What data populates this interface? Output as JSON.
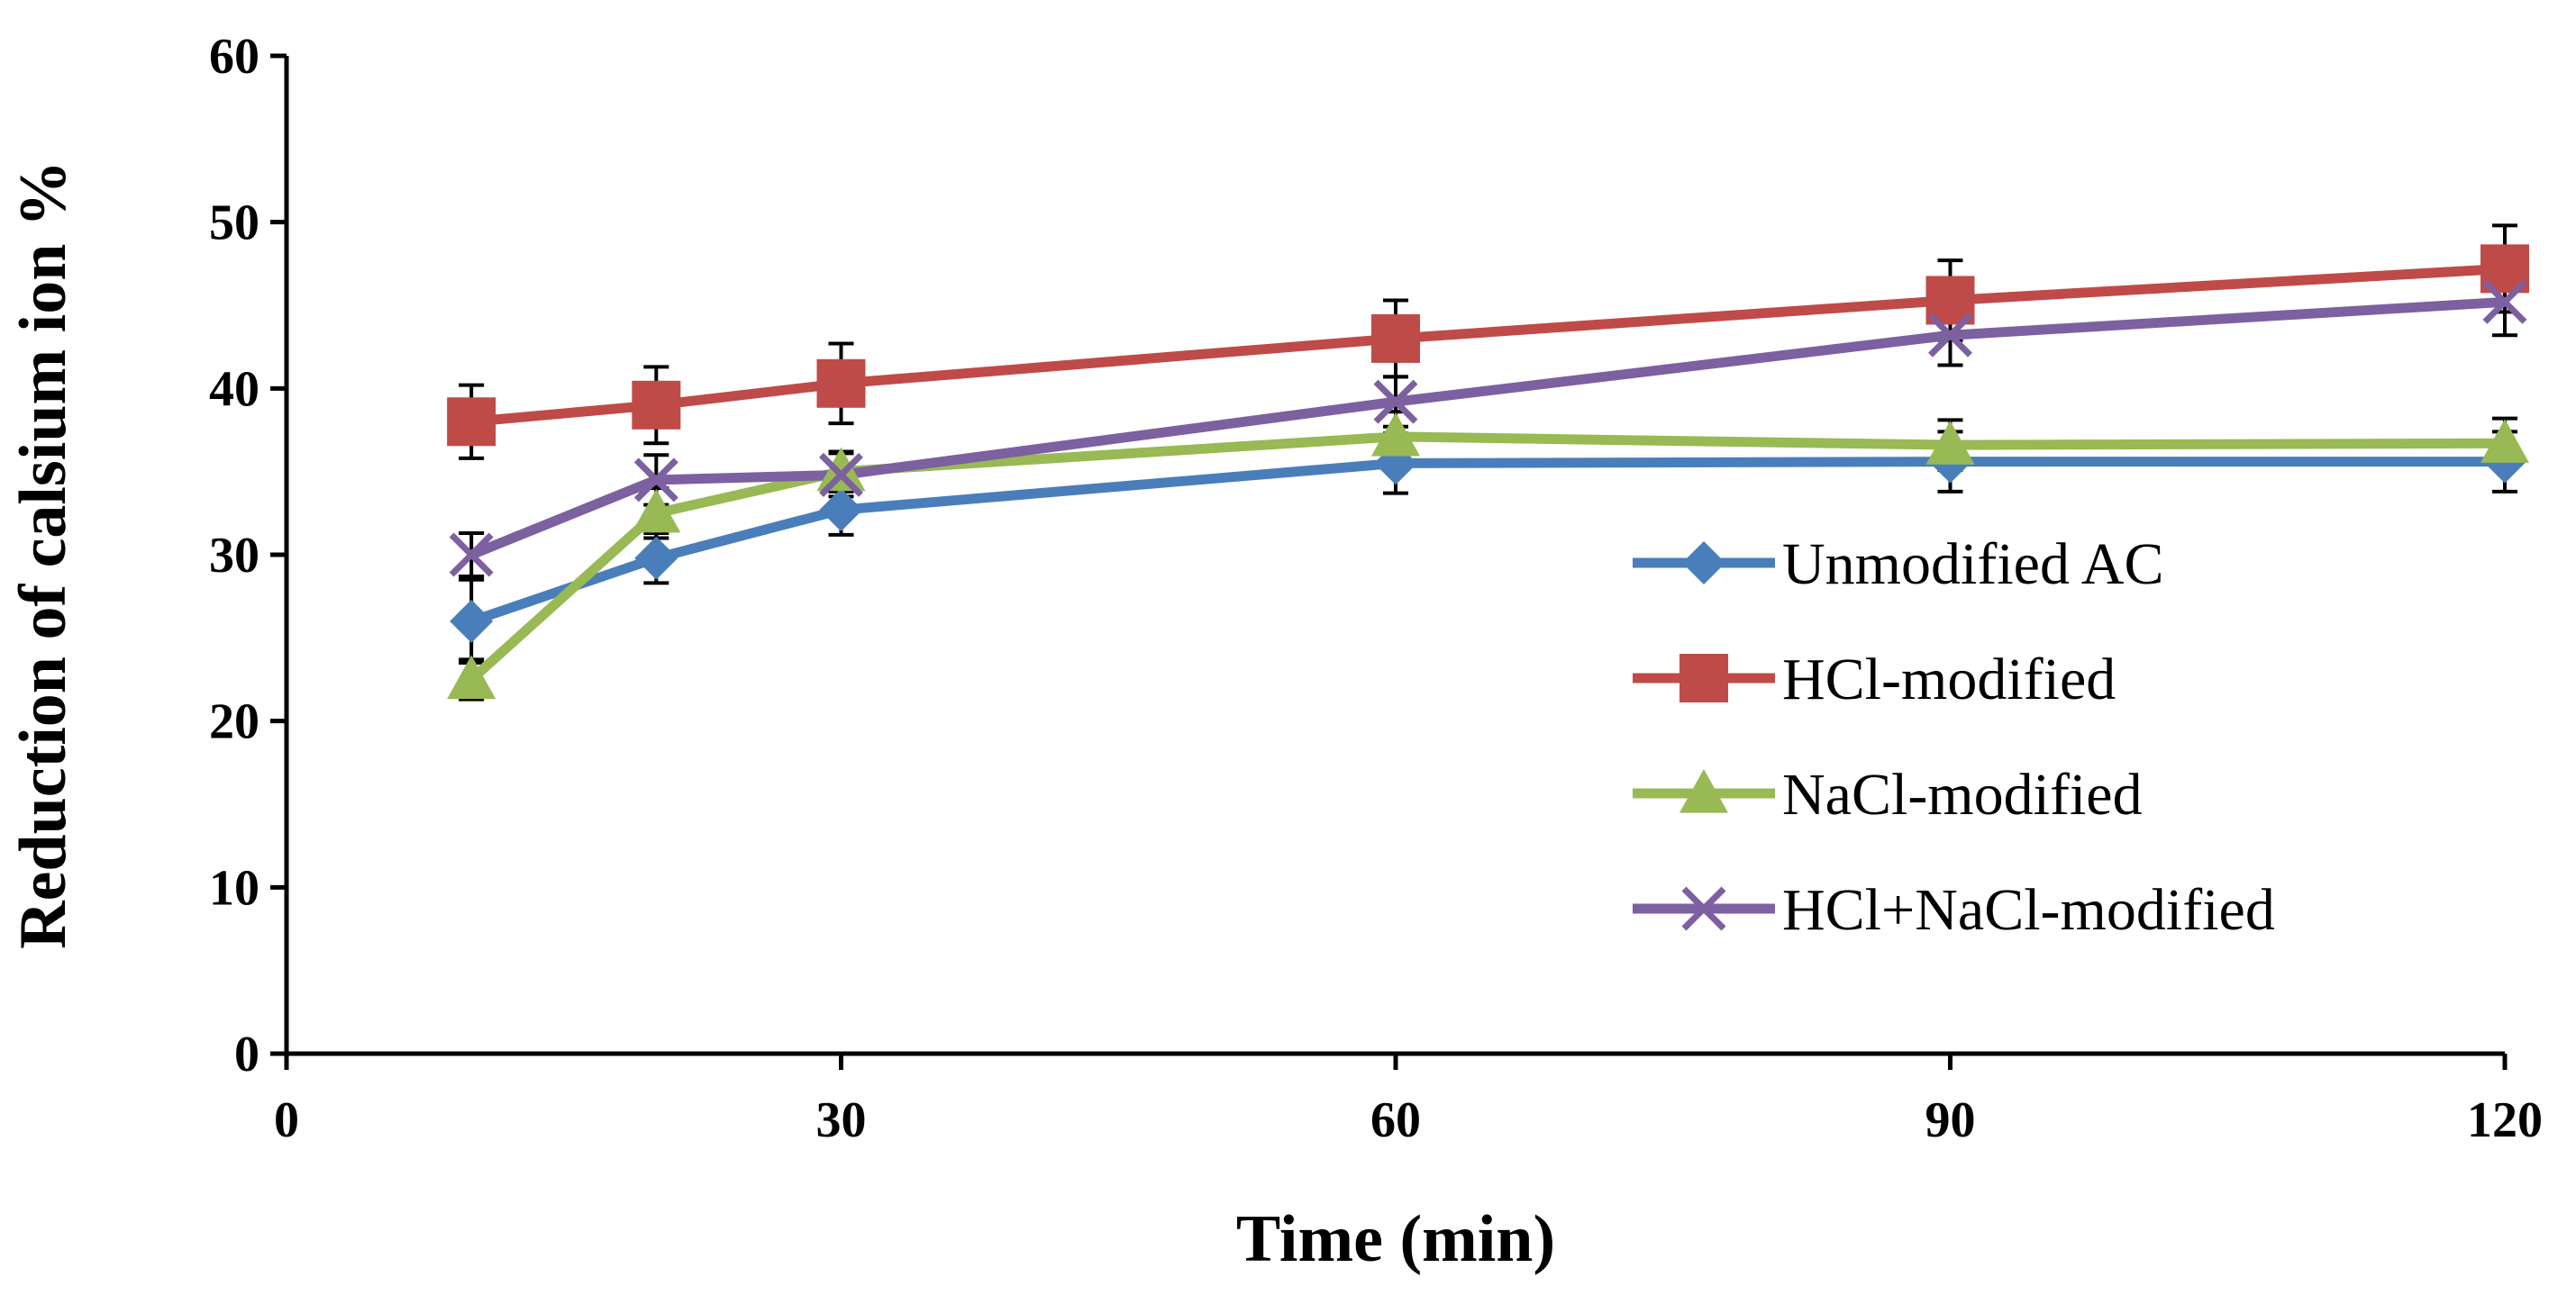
{
  "chart_data": {
    "type": "line",
    "title": "",
    "xlabel": "Time (min)",
    "ylabel": "Reduction of calsium ion %",
    "xlim": [
      0,
      120
    ],
    "ylim": [
      0,
      60
    ],
    "xticks": [
      0,
      30,
      60,
      90,
      120
    ],
    "yticks": [
      0,
      10,
      20,
      30,
      40,
      50,
      60
    ],
    "x": [
      10,
      20,
      30,
      60,
      90,
      120
    ],
    "grid": false,
    "legend_position": "right",
    "series": [
      {
        "name": "Unmodified AC",
        "marker": "diamond",
        "color": "#4a7ebb",
        "values": [
          26,
          29.8,
          32.7,
          35.5,
          35.6,
          35.6
        ],
        "errors": [
          2.5,
          1.5,
          1.5,
          1.8,
          1.8,
          1.8
        ]
      },
      {
        "name": "HCl-modified",
        "marker": "square",
        "color": "#be4b48",
        "values": [
          38,
          39,
          40.3,
          43,
          45.3,
          47.2
        ],
        "errors": [
          2.2,
          2.3,
          2.4,
          2.3,
          2.4,
          2.6
        ]
      },
      {
        "name": "NaCl-modified",
        "marker": "triangle",
        "color": "#98b954",
        "values": [
          22.5,
          32.5,
          35,
          37.1,
          36.6,
          36.7
        ],
        "errors": [
          1.2,
          1.5,
          1.2,
          1.5,
          1.5,
          1.5
        ]
      },
      {
        "name": "HCl+NaCl-modified",
        "marker": "x",
        "color": "#7d60a0",
        "values": [
          30,
          34.5,
          34.8,
          39.2,
          43.2,
          45.2
        ],
        "errors": [
          1.3,
          1.5,
          1.3,
          1.5,
          1.8,
          2.0
        ]
      }
    ]
  }
}
